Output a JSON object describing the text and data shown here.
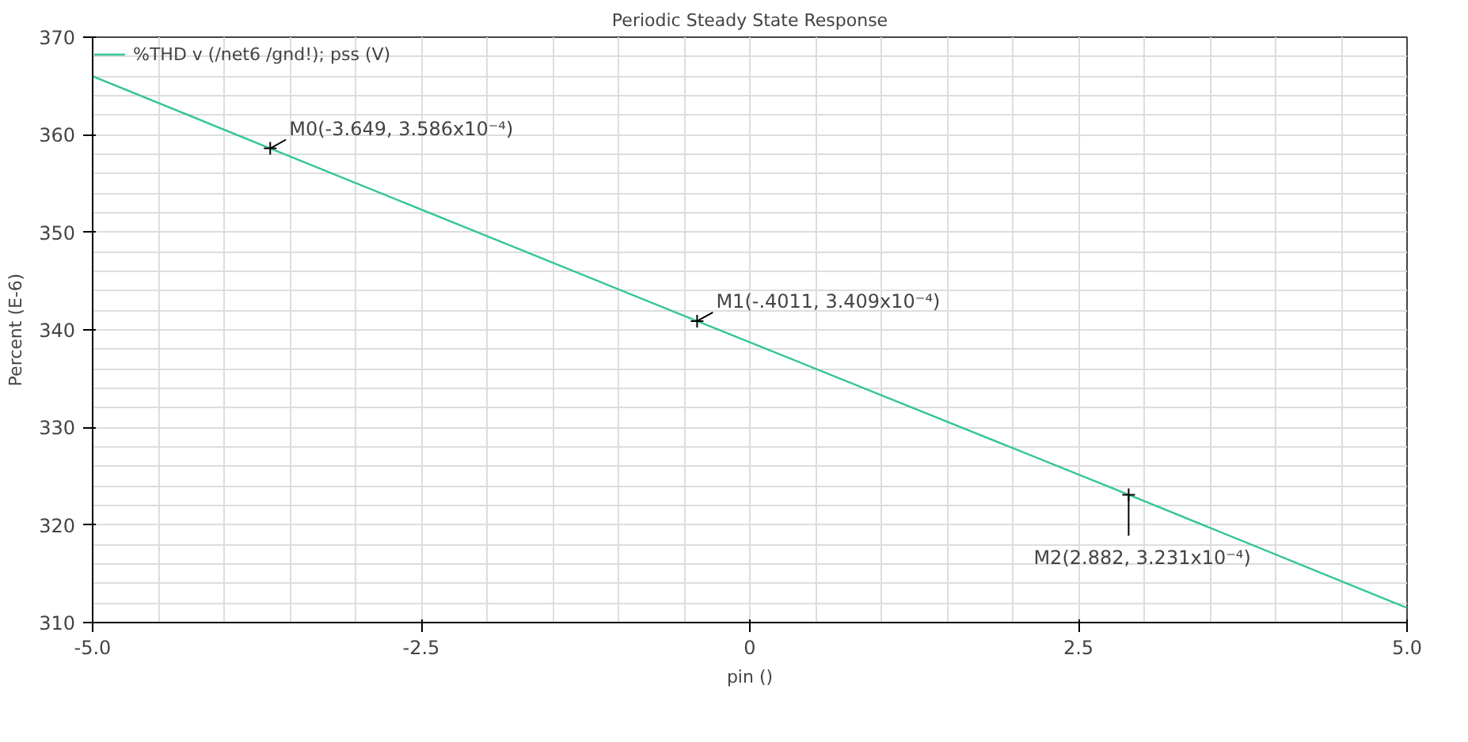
{
  "chart_data": {
    "type": "line",
    "title": "Periodic Steady State Response",
    "xlabel": "pin ()",
    "ylabel": "Percent (E-6)",
    "x": [
      -5,
      -3.649,
      -0.4011,
      2.882,
      5
    ],
    "series": [
      {
        "name": "%THD v (/net6 /gnd!); pss (V)",
        "color": "#33c59a",
        "values": [
          366,
          358.6,
          340.9,
          323.1,
          311.5
        ]
      }
    ],
    "xlim": [
      -5,
      5
    ],
    "xticks": [
      {
        "value": -5,
        "label": "-5.0"
      },
      {
        "value": -2.5,
        "label": "-2.5"
      },
      0,
      {
        "value": 2.5,
        "label": "2.5"
      },
      {
        "value": 5,
        "label": "5.0"
      }
    ],
    "ylim": [
      310,
      370
    ],
    "yticks": [
      310,
      320,
      330,
      340,
      350,
      360,
      370
    ],
    "grid": true,
    "legend": "top left",
    "line_style": "solid",
    "annotations": [
      {
        "text": "M0(-3.649, 3.586x10⁻⁴)",
        "x": -3.649,
        "y": 358.6
      },
      {
        "text": "M1(-.4011, 3.409x10⁻⁴)",
        "x": -0.4011,
        "y": 340.9
      },
      {
        "text": "M2(2.882, 3.231x10⁻⁴)",
        "x": 2.882,
        "y": 323.1
      }
    ]
  }
}
